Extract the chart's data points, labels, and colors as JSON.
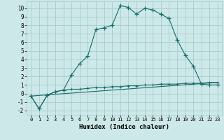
{
  "xlabel": "Humidex (Indice chaleur)",
  "background_color": "#cce8e8",
  "grid_color": "#aacccc",
  "line_color": "#1a6b6b",
  "xlim": [
    -0.5,
    23.5
  ],
  "ylim": [
    -2.5,
    10.8
  ],
  "xticks": [
    0,
    1,
    2,
    3,
    4,
    5,
    6,
    7,
    8,
    9,
    10,
    11,
    12,
    13,
    14,
    15,
    16,
    17,
    18,
    19,
    20,
    21,
    22,
    23
  ],
  "yticks": [
    -2,
    -1,
    0,
    1,
    2,
    3,
    4,
    5,
    6,
    7,
    8,
    9,
    10
  ],
  "line1_x": [
    0,
    1,
    2,
    3,
    4,
    5,
    6,
    7,
    8,
    9,
    10,
    11,
    12,
    13,
    14,
    15,
    16,
    17,
    18,
    19,
    20,
    21,
    22,
    23
  ],
  "line1_y": [
    -0.3,
    -1.8,
    -0.2,
    0.2,
    0.4,
    2.2,
    3.5,
    4.4,
    7.5,
    7.7,
    8.0,
    10.3,
    10.1,
    9.3,
    10.0,
    9.8,
    9.3,
    8.8,
    6.3,
    4.5,
    3.2,
    1.1,
    1.0,
    1.0
  ],
  "line2_x": [
    0,
    1,
    2,
    3,
    4,
    5,
    6,
    7,
    8,
    9,
    10,
    11,
    12,
    13,
    14,
    15,
    16,
    17,
    18,
    19,
    20,
    21,
    22,
    23
  ],
  "line2_y": [
    -0.3,
    -1.8,
    -0.2,
    0.2,
    0.4,
    0.5,
    0.5,
    0.6,
    0.7,
    0.7,
    0.8,
    0.8,
    0.9,
    0.9,
    1.0,
    1.0,
    1.1,
    1.1,
    1.1,
    1.2,
    1.2,
    1.2,
    1.3,
    1.3
  ],
  "line3_x": [
    0,
    23
  ],
  "line3_y": [
    -0.3,
    1.3
  ]
}
